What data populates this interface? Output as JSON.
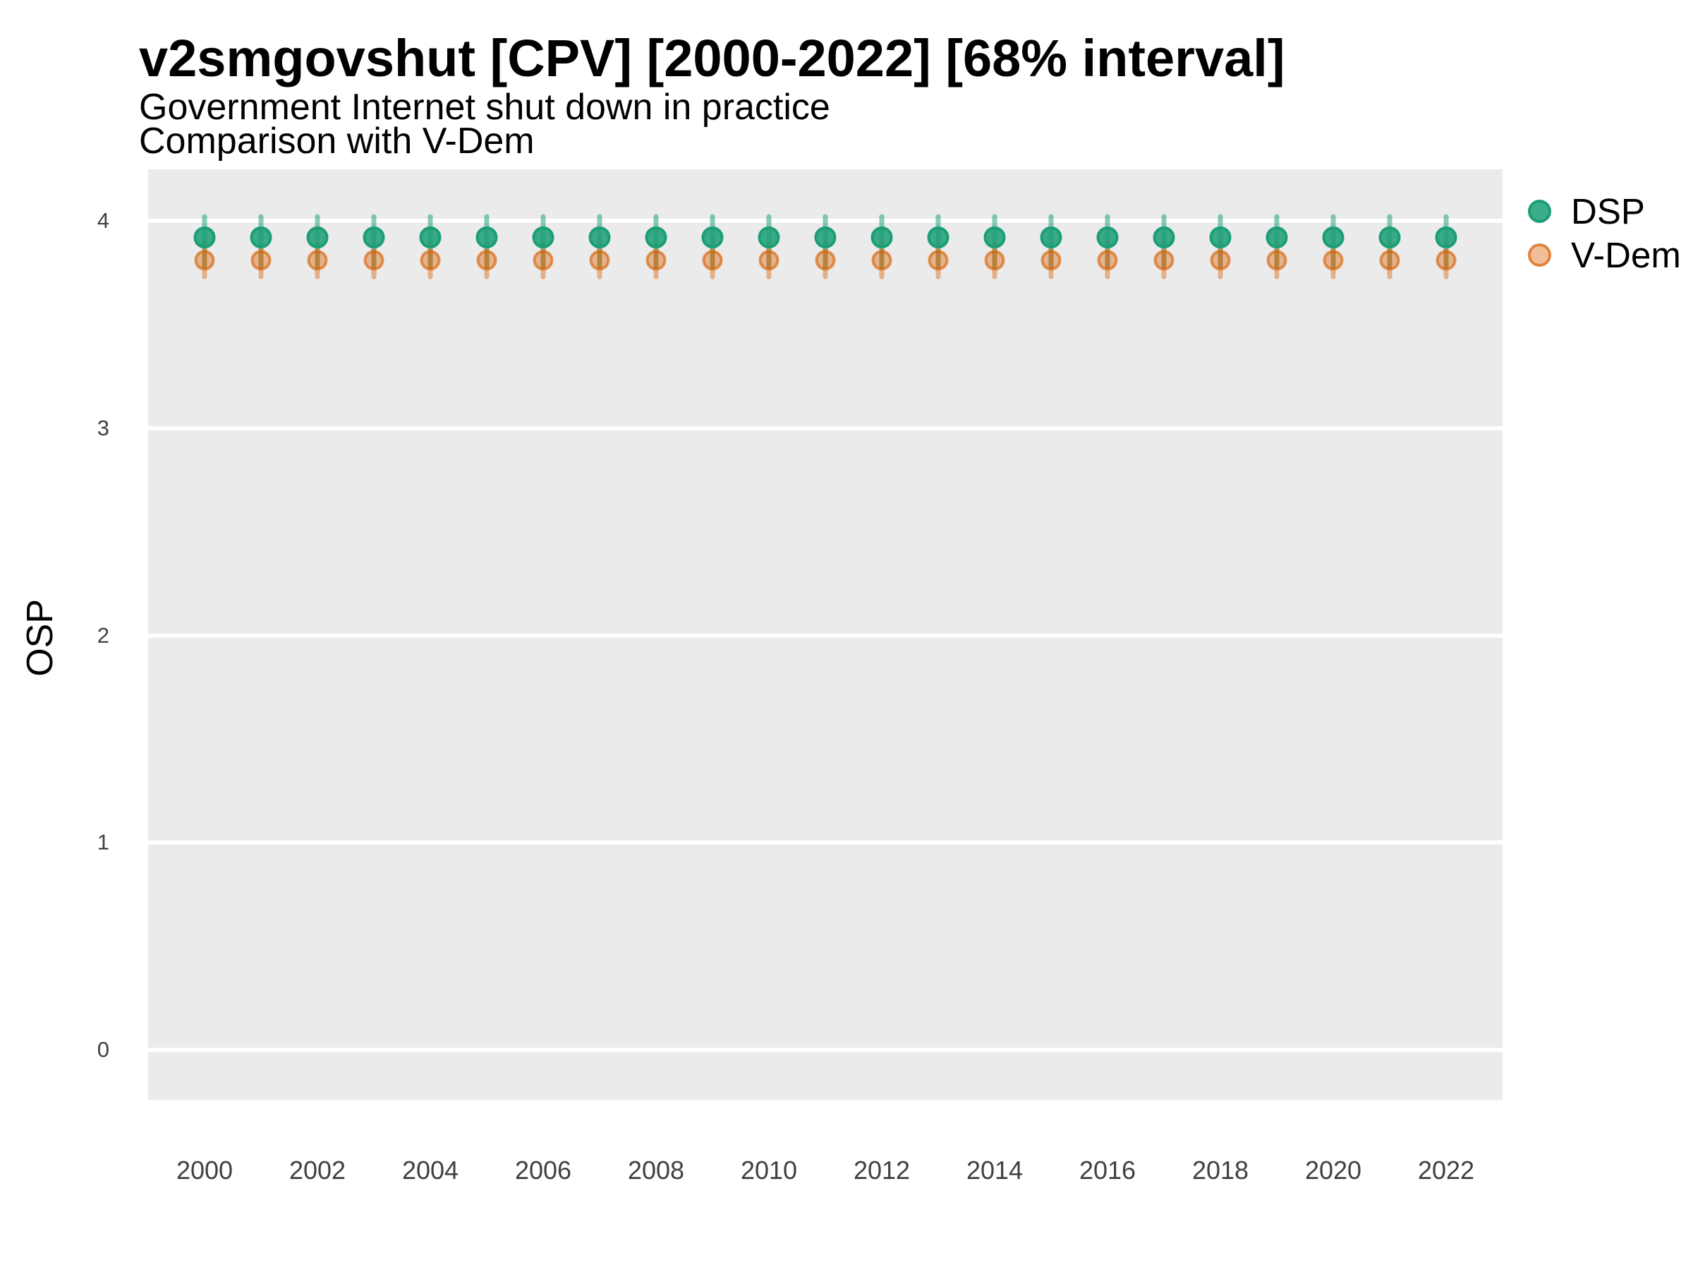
{
  "header": {
    "title": "v2smgovshut [CPV] [2000-2022] [68% interval]",
    "subtitle_line1": "Government Internet shut down in practice",
    "subtitle_line2": "Comparison with V-Dem"
  },
  "legend": {
    "items": [
      {
        "label": "DSP",
        "color": "#1B9E77"
      },
      {
        "label": "V-Dem",
        "color": "#D95F02"
      }
    ]
  },
  "chart_data": {
    "type": "pointrange",
    "title": "v2smgovshut [CPV] [2000-2022] [68% interval]",
    "subtitle": [
      "Government Internet shut down in practice",
      "Comparison with V-Dem"
    ],
    "xlabel": "",
    "ylabel": "OSP",
    "x": [
      2000,
      2001,
      2002,
      2003,
      2004,
      2005,
      2006,
      2007,
      2008,
      2009,
      2010,
      2011,
      2012,
      2013,
      2014,
      2015,
      2016,
      2017,
      2018,
      2019,
      2020,
      2021,
      2022
    ],
    "x_tick_labels": [
      "2000",
      "2002",
      "2004",
      "2006",
      "2008",
      "2010",
      "2012",
      "2014",
      "2016",
      "2018",
      "2020",
      "2022"
    ],
    "x_tick_years": [
      2000,
      2002,
      2004,
      2006,
      2008,
      2010,
      2012,
      2014,
      2016,
      2018,
      2020,
      2022
    ],
    "yticks": [
      0,
      1,
      2,
      3,
      4
    ],
    "y_tick_labels": [
      "0",
      "1",
      "2",
      "3",
      "4"
    ],
    "ylim": [
      -0.25,
      4.25
    ],
    "grid": "major-horizontal-only",
    "legend_position": "right",
    "interval": "68%",
    "series": [
      {
        "name": "DSP",
        "color": "#1B9E77",
        "values": [
          3.92,
          3.92,
          3.92,
          3.92,
          3.92,
          3.92,
          3.92,
          3.92,
          3.92,
          3.92,
          3.92,
          3.92,
          3.92,
          3.92,
          3.92,
          3.92,
          3.92,
          3.92,
          3.92,
          3.92,
          3.92,
          3.92,
          3.92
        ],
        "lower": [
          3.78,
          3.78,
          3.78,
          3.78,
          3.78,
          3.78,
          3.78,
          3.78,
          3.78,
          3.78,
          3.78,
          3.78,
          3.78,
          3.78,
          3.78,
          3.78,
          3.78,
          3.78,
          3.78,
          3.78,
          3.78,
          3.78,
          3.78
        ],
        "upper": [
          4.02,
          4.02,
          4.02,
          4.02,
          4.02,
          4.02,
          4.02,
          4.02,
          4.02,
          4.02,
          4.02,
          4.02,
          4.02,
          4.02,
          4.02,
          4.02,
          4.02,
          4.02,
          4.02,
          4.02,
          4.02,
          4.02,
          4.02
        ]
      },
      {
        "name": "V-Dem",
        "color": "#D95F02",
        "values": [
          3.81,
          3.81,
          3.81,
          3.81,
          3.81,
          3.81,
          3.81,
          3.81,
          3.81,
          3.81,
          3.81,
          3.81,
          3.81,
          3.81,
          3.81,
          3.81,
          3.81,
          3.81,
          3.81,
          3.81,
          3.81,
          3.81,
          3.81
        ],
        "lower": [
          3.73,
          3.73,
          3.73,
          3.73,
          3.73,
          3.73,
          3.73,
          3.73,
          3.73,
          3.73,
          3.73,
          3.73,
          3.73,
          3.73,
          3.73,
          3.73,
          3.73,
          3.73,
          3.73,
          3.73,
          3.73,
          3.73,
          3.73
        ],
        "upper": [
          3.89,
          3.89,
          3.89,
          3.89,
          3.89,
          3.89,
          3.89,
          3.89,
          3.89,
          3.89,
          3.89,
          3.89,
          3.89,
          3.89,
          3.89,
          3.89,
          3.89,
          3.89,
          3.89,
          3.89,
          3.89,
          3.89,
          3.89
        ]
      }
    ]
  },
  "panel_style": {
    "background": "#EBEBEB",
    "gridline_color": "#FFFFFF"
  }
}
